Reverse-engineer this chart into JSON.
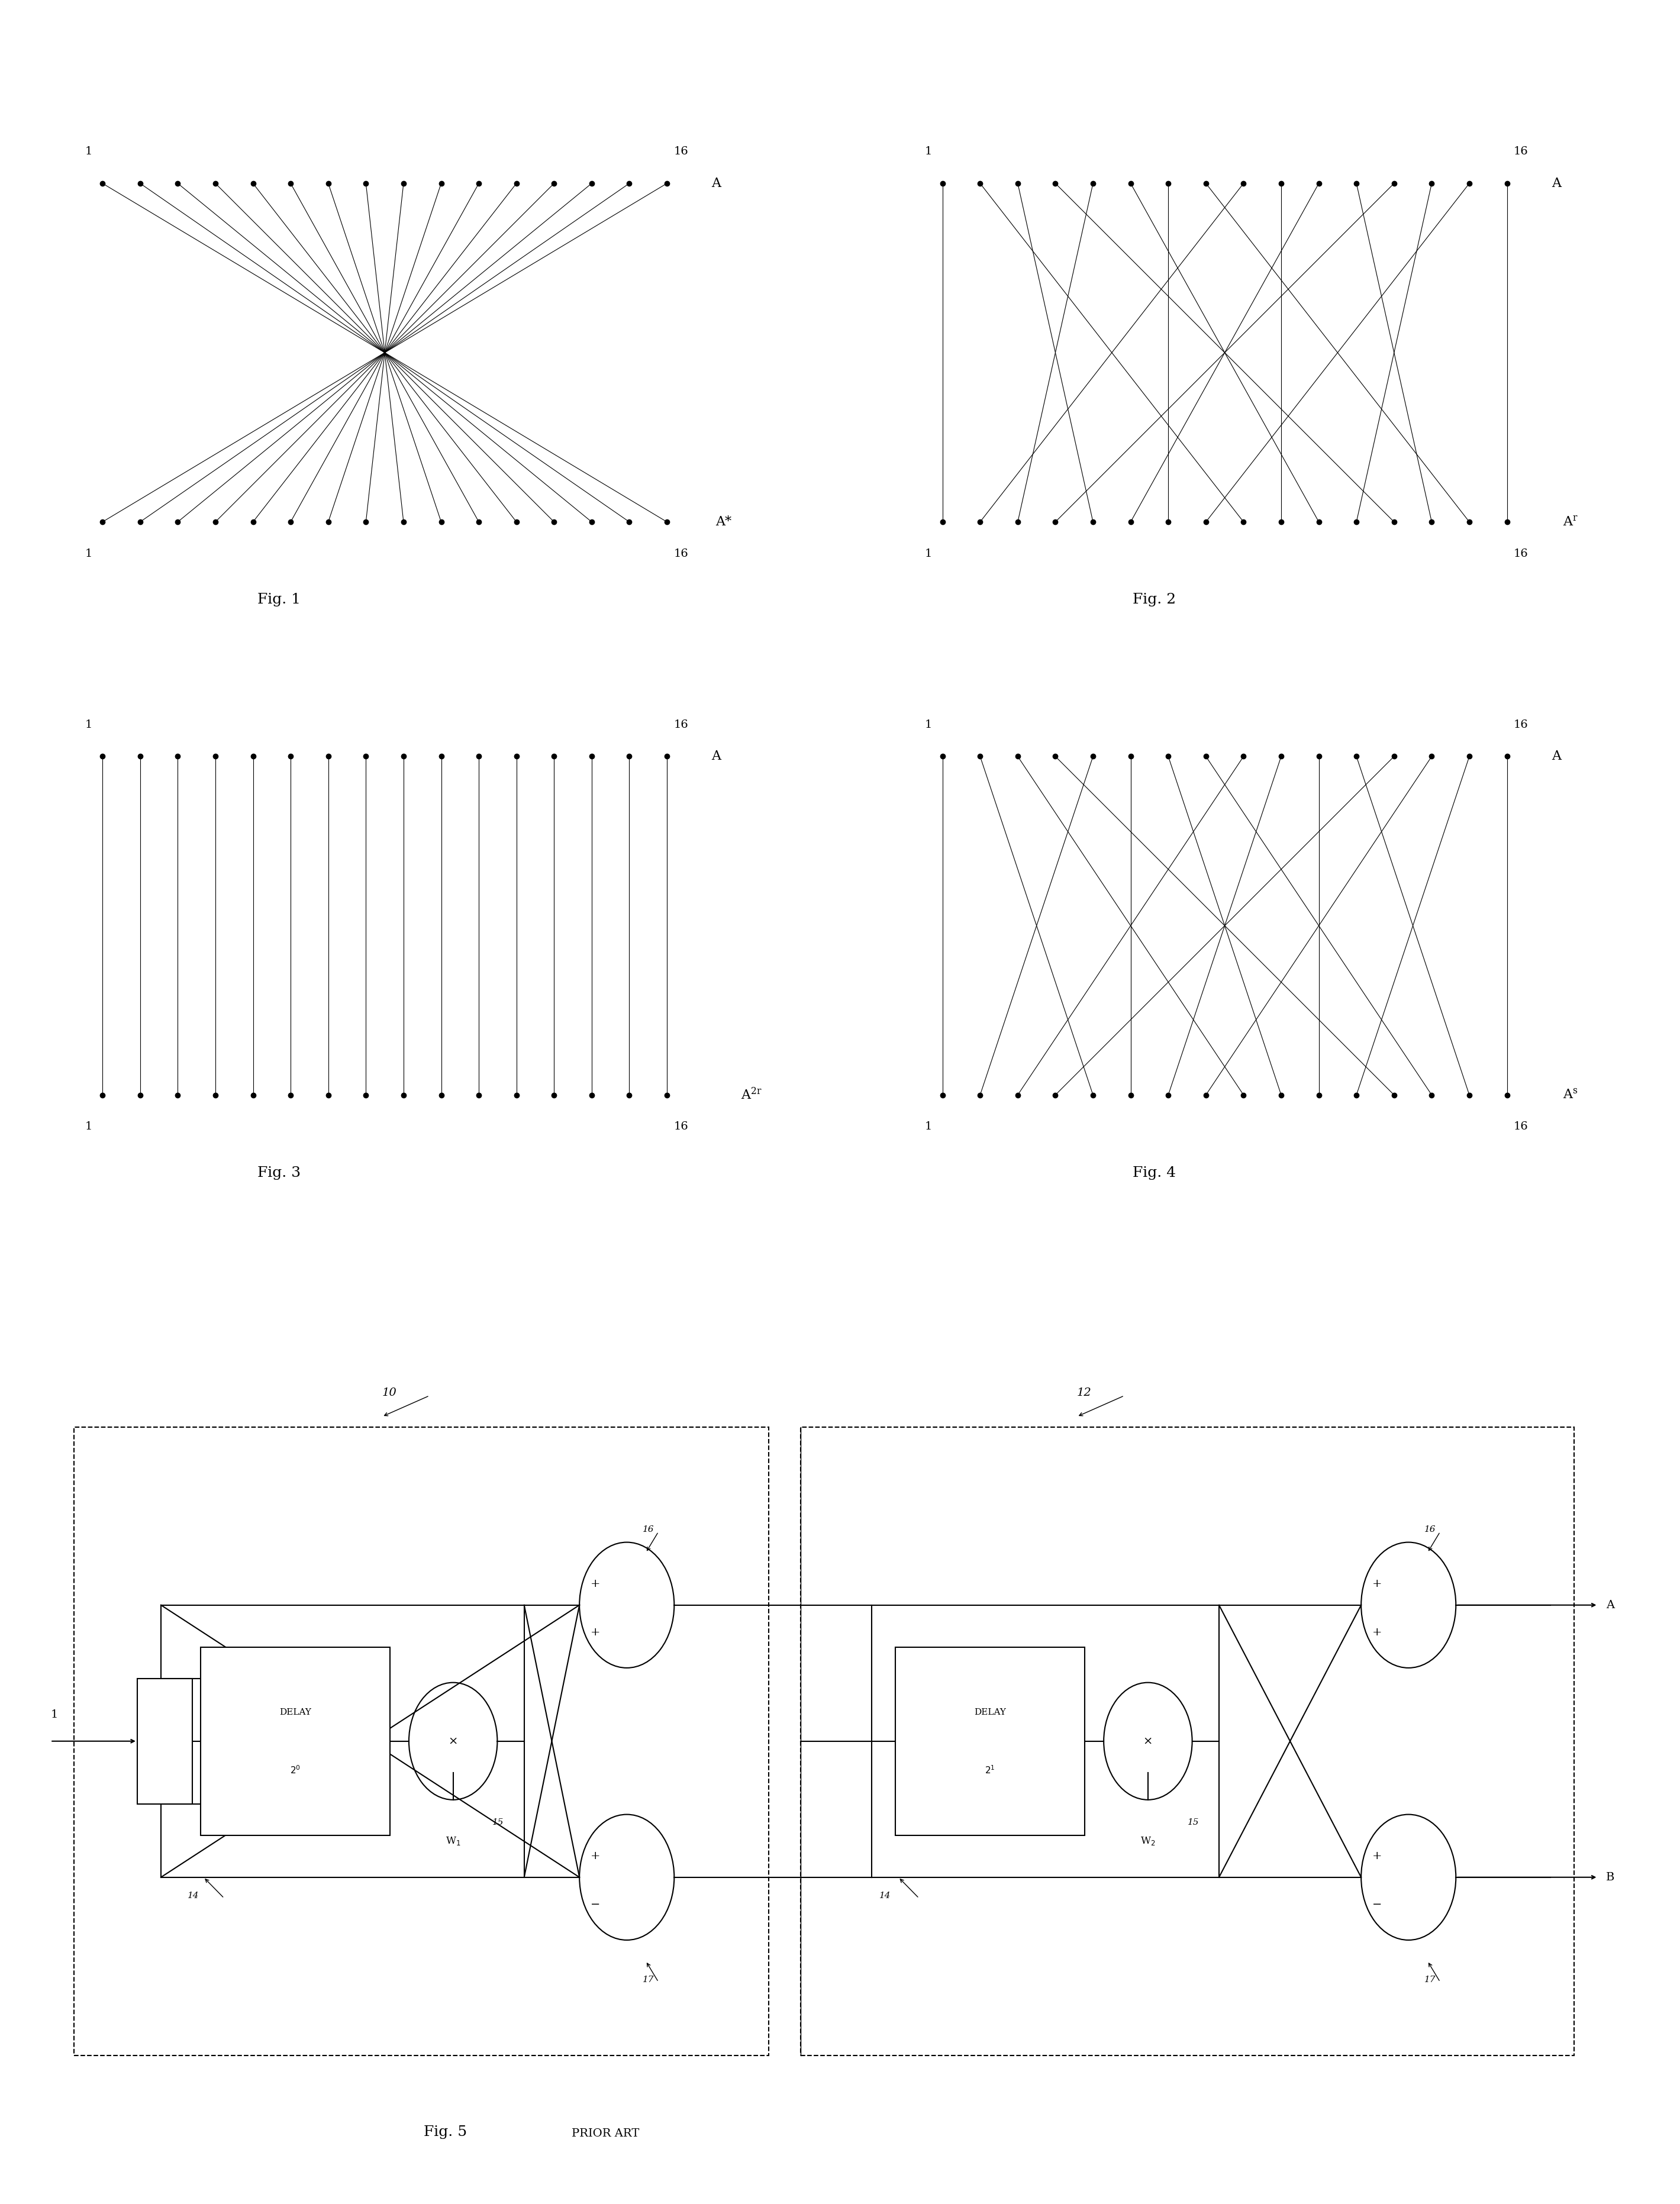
{
  "bg_color": "#ffffff",
  "fig_width": 28.39,
  "fig_height": 37.25,
  "n_points": 16,
  "fig1_title": "Fig. 1",
  "fig2_title": "Fig. 2",
  "fig3_title": "Fig. 3",
  "fig4_title": "Fig. 4",
  "fig5_title": "Fig. 5",
  "prior_art": "PRIOR ART"
}
